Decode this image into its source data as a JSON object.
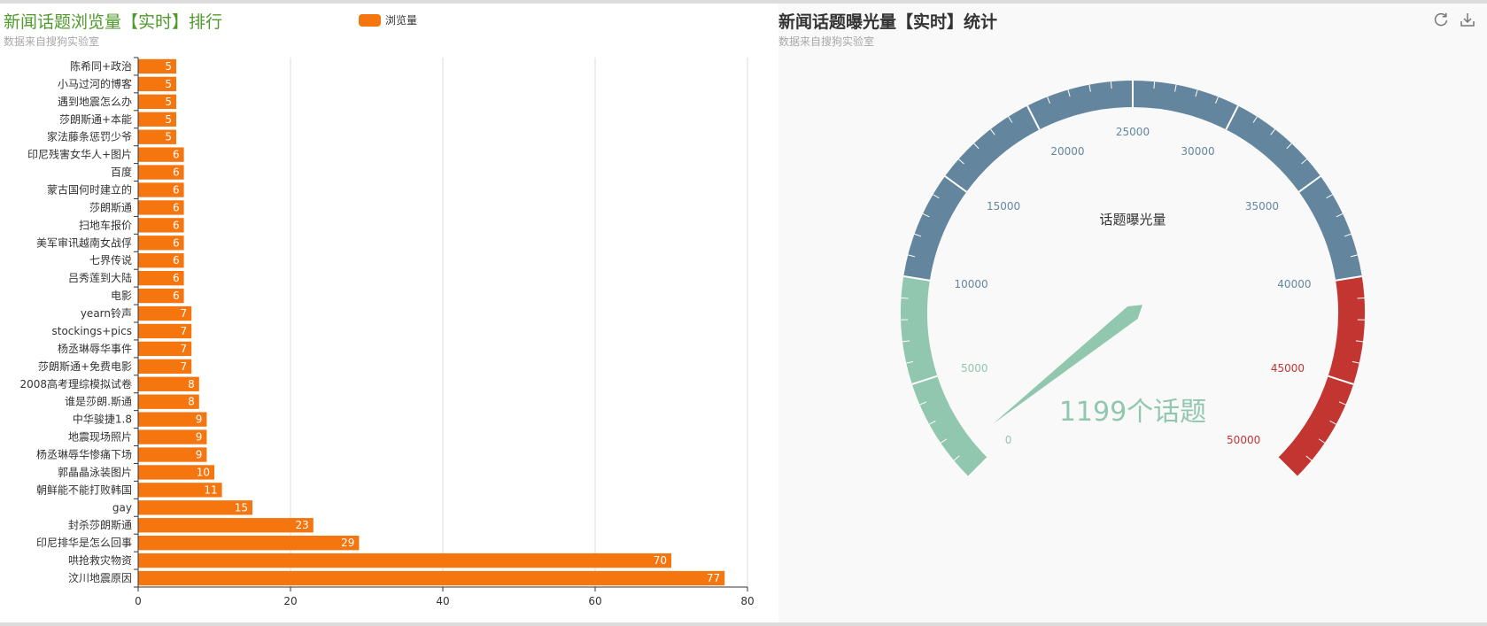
{
  "left_chart": {
    "title": "新闻话题浏览量【实时】排行",
    "subtitle": "数据来自搜狗实验室",
    "legend_label": "浏览量"
  },
  "right_chart": {
    "title": "新闻话题曝光量【实时】统计",
    "subtitle": "数据来自搜狗实验室"
  },
  "toolbox": {
    "refresh_icon": "refresh-icon",
    "download_icon": "download-icon"
  },
  "colors": {
    "bar": "#f5760f",
    "gauge_green": "#91c7ae",
    "gauge_blue": "#63869e",
    "gauge_red": "#c23531",
    "title_green": "#4f9a2b"
  },
  "chart_data": [
    {
      "type": "bar",
      "orientation": "horizontal",
      "title": "新闻话题浏览量【实时】排行",
      "subtitle": "数据来自搜狗实验室",
      "categories": [
        "汶川地震原因",
        "哄抢救灾物资",
        "印尼排华是怎么回事",
        "封杀莎朗斯通",
        "gay",
        "朝鲜能不能打败韩国",
        "郭晶晶泳装图片",
        "杨丞琳辱华惨痛下场",
        "地震现场照片",
        "中华骏捷1.8",
        "谁是莎朗.斯通",
        "2008高考理综模拟试卷",
        "莎朗斯通+免费电影",
        "杨丞琳辱华事件",
        "stockings+pics",
        "yearn铃声",
        "电影",
        "吕秀莲到大陆",
        "七界传说",
        "美军审讯越南女战俘",
        "扫地车报价",
        "莎朗斯通",
        "蒙古国何时建立的",
        "百度",
        "印尼残害女华人+图片",
        "家法藤条惩罚少爷",
        "莎朗斯通+本能",
        "遇到地震怎么办",
        "小马过河的博客",
        "陈希同+政治"
      ],
      "series": [
        {
          "name": "浏览量",
          "values": [
            77,
            70,
            29,
            23,
            15,
            11,
            10,
            9,
            9,
            9,
            8,
            8,
            7,
            7,
            7,
            7,
            6,
            6,
            6,
            6,
            6,
            6,
            6,
            6,
            6,
            5,
            5,
            5,
            5,
            5
          ]
        }
      ],
      "xlim": [
        0,
        80
      ],
      "x_ticks": [
        0,
        20,
        40,
        60,
        80
      ],
      "grid": true,
      "legend_position": "top-center"
    },
    {
      "type": "gauge",
      "title": "新闻话题曝光量【实时】统计",
      "subtitle": "数据来自搜狗实验室",
      "series_name": "话题曝光量",
      "value": 1199,
      "detail": "1199个话题",
      "min": 0,
      "max": 50000,
      "ticks": [
        0,
        5000,
        10000,
        15000,
        20000,
        25000,
        30000,
        35000,
        40000,
        45000,
        50000
      ],
      "bands": [
        {
          "to": 0.2,
          "color": "#91c7ae"
        },
        {
          "to": 0.8,
          "color": "#63869e"
        },
        {
          "to": 1.0,
          "color": "#c23531"
        }
      ]
    }
  ]
}
